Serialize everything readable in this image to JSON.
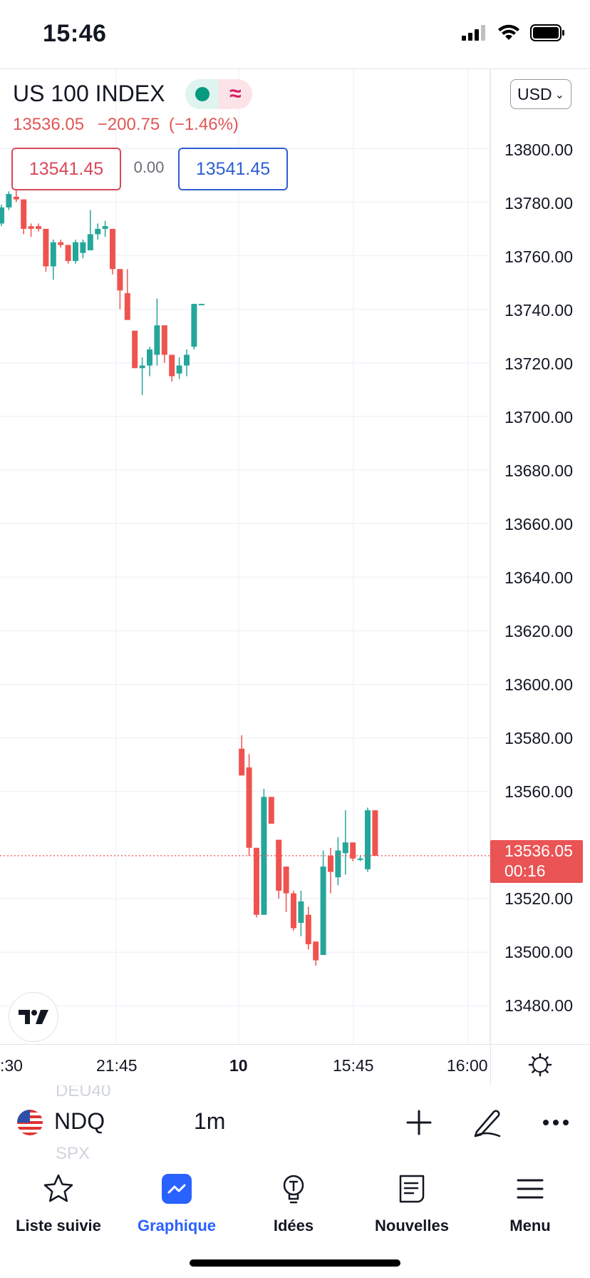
{
  "status_bar": {
    "time": "15:46"
  },
  "header": {
    "symbol_title": "US 100 INDEX",
    "last_price": "13536.05",
    "change": "−200.75",
    "change_pct": "(−1.46%)",
    "sell_price": "13541.45",
    "spread": "0.00",
    "buy_price": "13541.45",
    "currency": "USD"
  },
  "price_axis": {
    "labels": [
      "13800.00",
      "13780.00",
      "13760.00",
      "13740.00",
      "13720.00",
      "13700.00",
      "13680.00",
      "13660.00",
      "13640.00",
      "13620.00",
      "13600.00",
      "13580.00",
      "13560.00",
      "13520.00",
      "13500.00",
      "13480.00"
    ],
    "last_price_label": "13536.05",
    "countdown": "00:16"
  },
  "time_axis": {
    "labels": [
      ":30",
      "21:45",
      "10",
      "15:45",
      "16:00"
    ]
  },
  "toolbar": {
    "ghost_symbol_above": "DEU40",
    "ghost_symbol_below": "SPX",
    "symbol": "NDQ",
    "interval": "1m"
  },
  "nav": {
    "items": [
      {
        "label": "Liste suivie",
        "icon": "star-icon"
      },
      {
        "label": "Graphique",
        "icon": "chart-icon"
      },
      {
        "label": "Idées",
        "icon": "lightbulb-icon"
      },
      {
        "label": "Nouvelles",
        "icon": "news-icon"
      },
      {
        "label": "Menu",
        "icon": "menu-icon"
      }
    ],
    "active_item": "Graphique"
  },
  "colors": {
    "up": "#26a69a",
    "down": "#ef5350",
    "accent": "#2962ff",
    "last_price_tag": "#ea5455"
  },
  "chart_data": {
    "type": "candlestick",
    "symbol": "NDQ",
    "interval": "1m",
    "x_ticks": [
      ":30",
      "21:45",
      "10",
      "15:45",
      "16:00"
    ],
    "y_ticks": [
      13480,
      13500,
      13520,
      13560,
      13580,
      13600,
      13620,
      13640,
      13660,
      13680,
      13700,
      13720,
      13740,
      13760,
      13780,
      13800
    ],
    "last_price": 13536.05,
    "candles": [
      {
        "o": 13772,
        "h": 13779,
        "l": 13771,
        "c": 13778
      },
      {
        "o": 13778,
        "h": 13784,
        "l": 13777,
        "c": 13783
      },
      {
        "o": 13782,
        "h": 13787,
        "l": 13780,
        "c": 13781
      },
      {
        "o": 13781,
        "h": 13781,
        "l": 13768,
        "c": 13770
      },
      {
        "o": 13771,
        "h": 13772,
        "l": 13767,
        "c": 13770
      },
      {
        "o": 13771,
        "h": 13772,
        "l": 13769,
        "c": 13770
      },
      {
        "o": 13770,
        "h": 13770,
        "l": 13754,
        "c": 13756
      },
      {
        "o": 13756,
        "h": 13766,
        "l": 13751,
        "c": 13765
      },
      {
        "o": 13765,
        "h": 13766,
        "l": 13763,
        "c": 13764
      },
      {
        "o": 13764,
        "h": 13764,
        "l": 13757,
        "c": 13758
      },
      {
        "o": 13758,
        "h": 13766,
        "l": 13757,
        "c": 13765
      },
      {
        "o": 13761,
        "h": 13766,
        "l": 13759,
        "c": 13765
      },
      {
        "o": 13762,
        "h": 13777,
        "l": 13762,
        "c": 13768
      },
      {
        "o": 13768,
        "h": 13772,
        "l": 13766,
        "c": 13770
      },
      {
        "o": 13770,
        "h": 13773,
        "l": 13767,
        "c": 13771
      },
      {
        "o": 13770,
        "h": 13770,
        "l": 13753,
        "c": 13755
      },
      {
        "o": 13755,
        "h": 13755,
        "l": 13740,
        "c": 13747
      },
      {
        "o": 13746,
        "h": 13755,
        "l": 13736,
        "c": 13736
      },
      {
        "o": 13732,
        "h": 13732,
        "l": 13718,
        "c": 13718
      },
      {
        "o": 13718,
        "h": 13722,
        "l": 13708,
        "c": 13719
      },
      {
        "o": 13719,
        "h": 13726,
        "l": 13715,
        "c": 13725
      },
      {
        "o": 13723,
        "h": 13744,
        "l": 13719,
        "c": 13734
      },
      {
        "o": 13734,
        "h": 13734,
        "l": 13720,
        "c": 13723
      },
      {
        "o": 13723,
        "h": 13723,
        "l": 13713,
        "c": 13715
      },
      {
        "o": 13716,
        "h": 13722,
        "l": 13714,
        "c": 13719
      },
      {
        "o": 13719,
        "h": 13725,
        "l": 13715,
        "c": 13723
      },
      {
        "o": 13726,
        "h": 13742,
        "l": 13725,
        "c": 13742
      },
      {
        "o": 13742,
        "h": 13742,
        "l": 13742,
        "c": 13742
      },
      {
        "o": 13576,
        "h": 13581,
        "l": 13566,
        "c": 13566
      },
      {
        "o": 13569,
        "h": 13574,
        "l": 13536,
        "c": 13539
      },
      {
        "o": 13539,
        "h": 13539,
        "l": 13513,
        "c": 13514
      },
      {
        "o": 13514,
        "h": 13561,
        "l": 13514,
        "c": 13558
      },
      {
        "o": 13558,
        "h": 13558,
        "l": 13548,
        "c": 13548
      },
      {
        "o": 13542,
        "h": 13542,
        "l": 13520,
        "c": 13523
      },
      {
        "o": 13532,
        "h": 13532,
        "l": 13515,
        "c": 13522
      },
      {
        "o": 13522,
        "h": 13523,
        "l": 13508,
        "c": 13509
      },
      {
        "o": 13511,
        "h": 13523,
        "l": 13506,
        "c": 13519
      },
      {
        "o": 13514,
        "h": 13517,
        "l": 13501,
        "c": 13503
      },
      {
        "o": 13504,
        "h": 13504,
        "l": 13495,
        "c": 13497
      },
      {
        "o": 13499,
        "h": 13538,
        "l": 13499,
        "c": 13532
      },
      {
        "o": 13536,
        "h": 13539,
        "l": 13522,
        "c": 13530
      },
      {
        "o": 13528,
        "h": 13543,
        "l": 13525,
        "c": 13538
      },
      {
        "o": 13537,
        "h": 13553,
        "l": 13529,
        "c": 13541
      },
      {
        "o": 13541,
        "h": 13541,
        "l": 13534,
        "c": 13535
      },
      {
        "o": 13535,
        "h": 13536,
        "l": 13534,
        "c": 13535
      },
      {
        "o": 13531,
        "h": 13554,
        "l": 13530,
        "c": 13553
      },
      {
        "o": 13553,
        "h": 13553,
        "l": 13536,
        "c": 13536
      }
    ]
  }
}
